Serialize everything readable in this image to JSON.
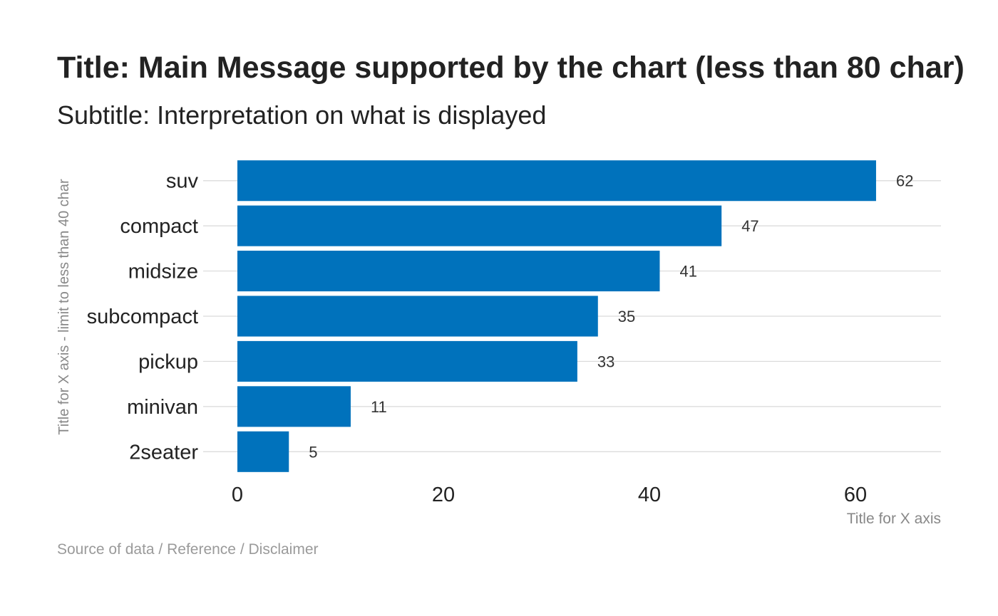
{
  "chart_data": {
    "type": "bar",
    "orientation": "horizontal",
    "title": "Title: Main Message supported by the chart (less than 80 char)",
    "subtitle": "Subtitle: Interpretation on what is displayed",
    "categories": [
      "suv",
      "compact",
      "midsize",
      "subcompact",
      "pickup",
      "minivan",
      "2seater"
    ],
    "values": [
      62,
      47,
      41,
      35,
      33,
      11,
      5
    ],
    "data_labels": [
      "62",
      "47",
      "41",
      "35",
      "33",
      "11",
      "5"
    ],
    "xlabel": "Title for X axis",
    "ylabel": "Title for X axis - limit to less than 40 char",
    "x_ticks": [
      0,
      20,
      40,
      60
    ],
    "xlim": [
      0,
      68.3
    ],
    "grid": "horizontal major lines only",
    "legend": "none",
    "caption": "Source of data / Reference / Disclaimer",
    "colors": {
      "bar": "#0072BC",
      "grid": "#d9d9d9",
      "title": "#222222",
      "axis_text": "#222222",
      "data_label": "#333333",
      "axis_title": "#888888",
      "caption": "#9a9a9a"
    }
  }
}
